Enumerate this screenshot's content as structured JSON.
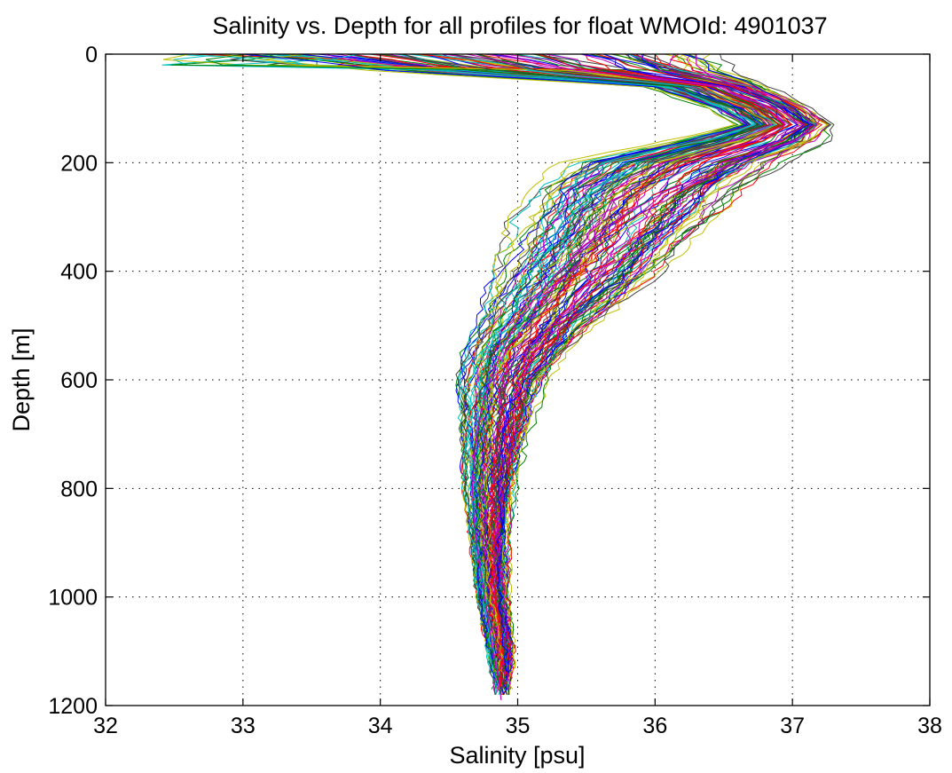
{
  "chart_data": {
    "type": "line",
    "title": "Salinity vs. Depth for all profiles for float WMOId: 4901037",
    "xlabel": "Salinity [psu]",
    "ylabel": "Depth [m]",
    "xlim": [
      32,
      38
    ],
    "ylim": [
      0,
      1200
    ],
    "y_reversed": true,
    "grid": true,
    "xticks": [
      "32",
      "33",
      "34",
      "35",
      "36",
      "37",
      "38"
    ],
    "yticks": [
      "0",
      "200",
      "400",
      "600",
      "800",
      "1000",
      "1200"
    ],
    "series_count_approx": 120,
    "representative_profile": {
      "depth": [
        0,
        20,
        40,
        60,
        80,
        100,
        120,
        140,
        160,
        200,
        250,
        300,
        350,
        400,
        450,
        500,
        550,
        600,
        650,
        700,
        750,
        800,
        850,
        900,
        1000,
        1100,
        1150,
        1190
      ],
      "salinity": [
        36.3,
        36.3,
        36.4,
        36.6,
        36.9,
        37.1,
        37.2,
        37.15,
        37.0,
        36.6,
        36.1,
        35.75,
        35.5,
        35.3,
        35.12,
        34.98,
        34.88,
        34.8,
        34.74,
        34.7,
        34.68,
        34.67,
        34.68,
        34.7,
        34.76,
        34.82,
        34.86,
        34.88
      ]
    },
    "envelope": {
      "depth": [
        0,
        30,
        60,
        100,
        130,
        160,
        200,
        250,
        300,
        350,
        400,
        450,
        500,
        550,
        600,
        700,
        800,
        900,
        1000,
        1100,
        1190
      ],
      "salinity_min": [
        32.4,
        33.6,
        35.8,
        36.3,
        36.5,
        36.0,
        35.25,
        35.0,
        34.9,
        34.85,
        34.78,
        34.72,
        34.68,
        34.58,
        34.55,
        34.57,
        34.6,
        34.65,
        34.7,
        34.78,
        34.84
      ],
      "salinity_max": [
        36.9,
        36.9,
        36.9,
        37.2,
        37.32,
        37.3,
        37.0,
        36.7,
        36.5,
        36.3,
        36.1,
        35.85,
        35.6,
        35.4,
        35.25,
        35.1,
        35.0,
        34.95,
        34.95,
        34.98,
        34.95
      ]
    },
    "palette": [
      "#0000ff",
      "#008000",
      "#ff0000",
      "#00bfbf",
      "#bf00bf",
      "#bfbf00",
      "#404040"
    ]
  }
}
